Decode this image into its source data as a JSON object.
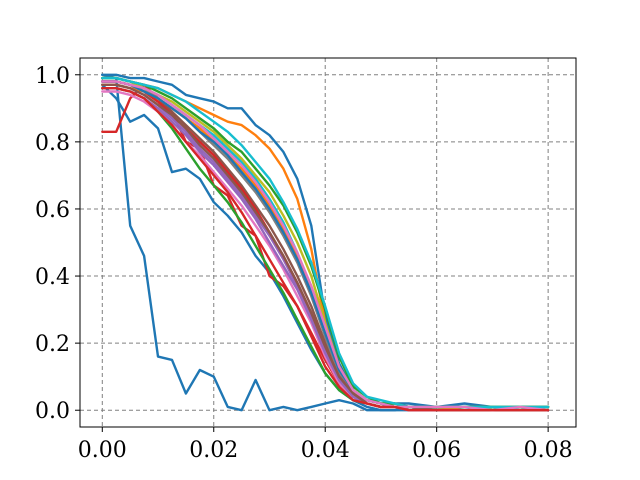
{
  "chart_data": {
    "type": "line",
    "title": "",
    "xlabel": "",
    "ylabel": "",
    "xlim": [
      -0.004,
      0.085
    ],
    "ylim": [
      -0.05,
      1.05
    ],
    "grid": true,
    "legend": "none",
    "x_ticks": [
      {
        "value": 0.0,
        "label": "0.00"
      },
      {
        "value": 0.02,
        "label": "0.02"
      },
      {
        "value": 0.04,
        "label": "0.04"
      },
      {
        "value": 0.06,
        "label": "0.06"
      },
      {
        "value": 0.08,
        "label": "0.08"
      }
    ],
    "y_ticks": [
      {
        "value": 0.0,
        "label": "0.0"
      },
      {
        "value": 0.2,
        "label": "0.2"
      },
      {
        "value": 0.4,
        "label": "0.4"
      },
      {
        "value": 0.6,
        "label": "0.6"
      },
      {
        "value": 0.8,
        "label": "0.8"
      },
      {
        "value": 1.0,
        "label": "1.0"
      }
    ],
    "x": [
      0.0,
      0.0025,
      0.005,
      0.0075,
      0.01,
      0.0125,
      0.015,
      0.0175,
      0.02,
      0.0225,
      0.025,
      0.0275,
      0.03,
      0.0325,
      0.035,
      0.0375,
      0.04,
      0.0425,
      0.045,
      0.0475,
      0.05,
      0.0525,
      0.055,
      0.06,
      0.065,
      0.07,
      0.075,
      0.08
    ],
    "series": [
      {
        "color": "#1f77b4",
        "values": [
          0.97,
          0.93,
          0.86,
          0.88,
          0.84,
          0.71,
          0.72,
          0.69,
          0.62,
          0.58,
          0.53,
          0.46,
          0.41,
          0.34,
          0.26,
          0.18,
          0.11,
          0.06,
          0.03,
          0.01,
          0.0,
          0.0,
          0.0,
          0.0,
          0.0,
          0.0,
          0.0,
          0.0
        ]
      },
      {
        "color": "#1f77b4",
        "values": [
          1.0,
          0.99,
          0.55,
          0.46,
          0.16,
          0.15,
          0.05,
          0.12,
          0.1,
          0.01,
          0.0,
          0.09,
          0.0,
          0.01,
          0.0,
          0.01,
          0.02,
          0.03,
          0.02,
          0.0,
          0.0,
          0.0,
          0.01,
          0.0,
          0.01,
          0.0,
          0.01,
          0.01
        ]
      },
      {
        "color": "#d62728",
        "values": [
          0.83,
          0.83,
          0.93,
          0.97,
          0.93,
          0.89,
          0.8,
          0.78,
          0.67,
          0.64,
          0.55,
          0.52,
          0.4,
          0.37,
          0.31,
          0.23,
          0.15,
          0.08,
          0.04,
          0.02,
          0.01,
          0.01,
          0.01,
          0.0,
          0.01,
          0.0,
          0.01,
          0.01
        ]
      },
      {
        "color": "#1f77b4",
        "values": [
          1.0,
          1.0,
          0.99,
          0.99,
          0.98,
          0.97,
          0.94,
          0.93,
          0.92,
          0.9,
          0.9,
          0.85,
          0.82,
          0.77,
          0.69,
          0.55,
          0.28,
          0.14,
          0.06,
          0.03,
          0.02,
          0.02,
          0.02,
          0.01,
          0.02,
          0.01,
          0.01,
          0.01
        ]
      },
      {
        "color": "#ff7f0e",
        "values": [
          0.99,
          0.99,
          0.98,
          0.97,
          0.96,
          0.94,
          0.92,
          0.9,
          0.88,
          0.86,
          0.85,
          0.82,
          0.78,
          0.72,
          0.63,
          0.48,
          0.26,
          0.12,
          0.05,
          0.03,
          0.02,
          0.01,
          0.01,
          0.01,
          0.01,
          0.01,
          0.0,
          0.01
        ]
      },
      {
        "color": "#2ca02c",
        "values": [
          0.96,
          0.96,
          0.95,
          0.93,
          0.89,
          0.84,
          0.78,
          0.72,
          0.67,
          0.62,
          0.56,
          0.49,
          0.42,
          0.35,
          0.27,
          0.19,
          0.11,
          0.06,
          0.03,
          0.02,
          0.01,
          0.01,
          0.01,
          0.0,
          0.01,
          0.0,
          0.0,
          0.01
        ]
      },
      {
        "color": "#17becf",
        "values": [
          0.99,
          0.99,
          0.98,
          0.96,
          0.94,
          0.91,
          0.88,
          0.85,
          0.82,
          0.78,
          0.74,
          0.69,
          0.63,
          0.56,
          0.47,
          0.36,
          0.22,
          0.11,
          0.05,
          0.03,
          0.02,
          0.01,
          0.01,
          0.01,
          0.0,
          0.01,
          0.0,
          0.01
        ]
      },
      {
        "color": "#9467bd",
        "values": [
          0.97,
          0.97,
          0.96,
          0.94,
          0.91,
          0.87,
          0.83,
          0.78,
          0.74,
          0.69,
          0.64,
          0.58,
          0.52,
          0.45,
          0.37,
          0.28,
          0.18,
          0.09,
          0.04,
          0.02,
          0.01,
          0.01,
          0.01,
          0.0,
          0.0,
          0.0,
          0.0,
          0.0
        ]
      },
      {
        "color": "#8c564b",
        "values": [
          0.98,
          0.98,
          0.97,
          0.95,
          0.92,
          0.89,
          0.85,
          0.81,
          0.77,
          0.72,
          0.67,
          0.61,
          0.55,
          0.48,
          0.4,
          0.31,
          0.2,
          0.1,
          0.05,
          0.02,
          0.01,
          0.01,
          0.0,
          0.0,
          0.01,
          0.0,
          0.0,
          0.0
        ]
      },
      {
        "color": "#e377c2",
        "values": [
          0.95,
          0.95,
          0.94,
          0.92,
          0.89,
          0.85,
          0.8,
          0.76,
          0.71,
          0.66,
          0.61,
          0.55,
          0.49,
          0.42,
          0.34,
          0.26,
          0.16,
          0.08,
          0.04,
          0.02,
          0.01,
          0.01,
          0.01,
          0.0,
          0.0,
          0.0,
          0.0,
          0.0
        ]
      },
      {
        "color": "#7f7f7f",
        "values": [
          0.98,
          0.98,
          0.97,
          0.96,
          0.93,
          0.9,
          0.87,
          0.83,
          0.79,
          0.75,
          0.7,
          0.65,
          0.59,
          0.52,
          0.44,
          0.34,
          0.22,
          0.11,
          0.05,
          0.03,
          0.02,
          0.01,
          0.01,
          0.0,
          0.01,
          0.0,
          0.0,
          0.01
        ]
      },
      {
        "color": "#bcbd22",
        "values": [
          0.99,
          0.99,
          0.98,
          0.96,
          0.94,
          0.92,
          0.89,
          0.86,
          0.83,
          0.79,
          0.75,
          0.7,
          0.65,
          0.58,
          0.5,
          0.4,
          0.26,
          0.13,
          0.06,
          0.03,
          0.02,
          0.02,
          0.01,
          0.01,
          0.01,
          0.01,
          0.01,
          0.01
        ]
      },
      {
        "color": "#d62728",
        "values": [
          0.98,
          0.98,
          0.97,
          0.95,
          0.92,
          0.88,
          0.84,
          0.8,
          0.76,
          0.71,
          0.66,
          0.6,
          0.53,
          0.46,
          0.38,
          0.29,
          0.19,
          0.1,
          0.05,
          0.02,
          0.01,
          0.01,
          0.01,
          0.0,
          0.0,
          0.0,
          0.0,
          0.0
        ]
      },
      {
        "color": "#ff7f0e",
        "values": [
          0.97,
          0.97,
          0.96,
          0.95,
          0.93,
          0.9,
          0.87,
          0.84,
          0.8,
          0.76,
          0.72,
          0.67,
          0.61,
          0.54,
          0.46,
          0.37,
          0.25,
          0.13,
          0.06,
          0.03,
          0.02,
          0.01,
          0.01,
          0.0,
          0.01,
          0.0,
          0.0,
          0.0
        ]
      },
      {
        "color": "#2ca02c",
        "values": [
          0.99,
          0.99,
          0.98,
          0.97,
          0.95,
          0.93,
          0.9,
          0.87,
          0.84,
          0.8,
          0.77,
          0.72,
          0.67,
          0.61,
          0.53,
          0.43,
          0.3,
          0.16,
          0.07,
          0.04,
          0.02,
          0.02,
          0.01,
          0.01,
          0.01,
          0.01,
          0.01,
          0.01
        ]
      },
      {
        "color": "#1f77b4",
        "values": [
          0.98,
          0.98,
          0.97,
          0.95,
          0.93,
          0.9,
          0.87,
          0.83,
          0.8,
          0.76,
          0.71,
          0.66,
          0.6,
          0.53,
          0.45,
          0.35,
          0.23,
          0.12,
          0.06,
          0.03,
          0.02,
          0.01,
          0.01,
          0.0,
          0.0,
          0.0,
          0.0,
          0.0
        ]
      },
      {
        "color": "#9467bd",
        "values": [
          0.96,
          0.96,
          0.95,
          0.93,
          0.9,
          0.86,
          0.82,
          0.77,
          0.73,
          0.68,
          0.63,
          0.57,
          0.5,
          0.43,
          0.36,
          0.27,
          0.17,
          0.09,
          0.04,
          0.02,
          0.01,
          0.01,
          0.0,
          0.0,
          0.0,
          0.0,
          0.0,
          0.0
        ]
      },
      {
        "color": "#17becf",
        "values": [
          0.99,
          0.99,
          0.98,
          0.97,
          0.96,
          0.94,
          0.92,
          0.89,
          0.86,
          0.83,
          0.79,
          0.74,
          0.69,
          0.62,
          0.54,
          0.44,
          0.31,
          0.17,
          0.08,
          0.04,
          0.03,
          0.02,
          0.01,
          0.01,
          0.01,
          0.01,
          0.01,
          0.01
        ]
      },
      {
        "color": "#8c564b",
        "values": [
          0.97,
          0.97,
          0.96,
          0.94,
          0.91,
          0.88,
          0.84,
          0.79,
          0.75,
          0.7,
          0.65,
          0.59,
          0.53,
          0.46,
          0.38,
          0.29,
          0.19,
          0.1,
          0.05,
          0.02,
          0.01,
          0.01,
          0.01,
          0.0,
          0.0,
          0.0,
          0.0,
          0.0
        ]
      },
      {
        "color": "#e377c2",
        "values": [
          0.98,
          0.98,
          0.97,
          0.96,
          0.94,
          0.91,
          0.88,
          0.85,
          0.81,
          0.77,
          0.73,
          0.68,
          0.62,
          0.55,
          0.47,
          0.37,
          0.25,
          0.13,
          0.06,
          0.03,
          0.02,
          0.01,
          0.01,
          0.01,
          0.01,
          0.0,
          0.01,
          0.0
        ]
      },
      {
        "color": "#d62728",
        "values": [
          0.96,
          0.96,
          0.95,
          0.93,
          0.89,
          0.85,
          0.8,
          0.75,
          0.7,
          0.65,
          0.59,
          0.52,
          0.45,
          0.38,
          0.31,
          0.22,
          0.13,
          0.07,
          0.03,
          0.02,
          0.01,
          0.01,
          0.0,
          0.0,
          0.0,
          0.0,
          0.0,
          0.0
        ]
      }
    ]
  }
}
